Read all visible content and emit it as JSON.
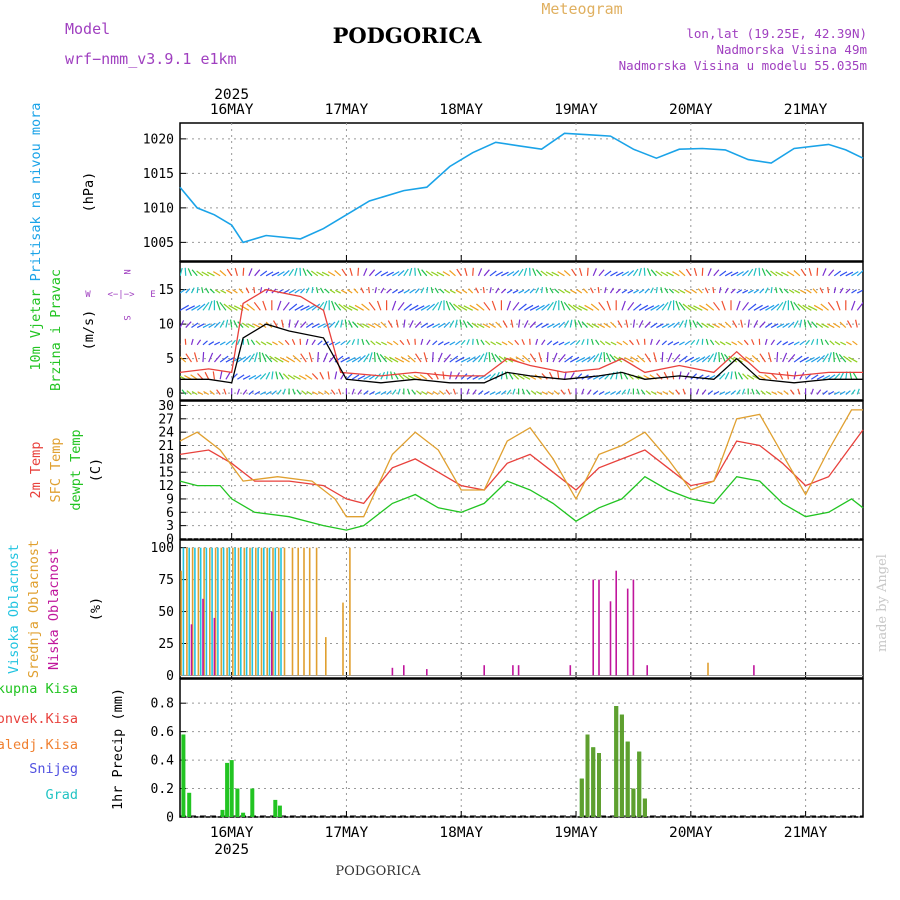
{
  "header": {
    "model_label": "Model",
    "model_name": "wrf−nmm_v3.9.1 e1km",
    "title": "PODGORICA",
    "product": "Meteogram",
    "coords": "lon,lat (19.25E, 42.39N)",
    "elevation": "Nadmorska Visina 49m",
    "model_elevation": "Nadmorska Visina u modelu 55.035m",
    "footer": "PODGORICA",
    "credit": "made by Angel"
  },
  "colors": {
    "pressure": "#1aa3e8",
    "temp2m": "#e8413c",
    "sfc": "#e0a030",
    "dew": "#22c422",
    "visoka": "#22c4e0",
    "srednja": "#e0a030",
    "niska": "#c0169c",
    "ukupna": "#22c422",
    "konvek": "#e8413c",
    "zaledj": "#f08030",
    "snijeg": "#5050e0",
    "grad": "#22c4c4",
    "precip_bar": "#5f9f2f",
    "wind_speed": "#000000",
    "gust": "#e8413c",
    "direction_legend": "#a040c0"
  },
  "time_axis": {
    "start_day": 15.55,
    "end_day": 21.5,
    "year": "2025",
    "day_ticks": [
      {
        "day": 16,
        "label": "16MAY"
      },
      {
        "day": 17,
        "label": "17MAY"
      },
      {
        "day": 18,
        "label": "18MAY"
      },
      {
        "day": 19,
        "label": "19MAY"
      },
      {
        "day": 20,
        "label": "20MAY"
      },
      {
        "day": 21,
        "label": "21MAY"
      }
    ]
  },
  "chart_data": [
    {
      "type": "line",
      "name": "pressure",
      "ylabel": "Pritisak na nivou mora",
      "unit": "(hPa)",
      "ylim": [
        1002.3,
        1022.3
      ],
      "yticks": [
        1005,
        1010,
        1015,
        1020
      ],
      "points": [
        [
          15.55,
          1013
        ],
        [
          15.7,
          1010
        ],
        [
          15.85,
          1009
        ],
        [
          16.0,
          1007.5
        ],
        [
          16.1,
          1005
        ],
        [
          16.3,
          1006
        ],
        [
          16.6,
          1005.5
        ],
        [
          16.8,
          1007
        ],
        [
          17.0,
          1009
        ],
        [
          17.2,
          1011
        ],
        [
          17.5,
          1012.5
        ],
        [
          17.7,
          1013
        ],
        [
          17.9,
          1016
        ],
        [
          18.1,
          1018
        ],
        [
          18.3,
          1019.5
        ],
        [
          18.5,
          1019
        ],
        [
          18.7,
          1018.5
        ],
        [
          18.9,
          1020.8
        ],
        [
          19.1,
          1020.6
        ],
        [
          19.3,
          1020.4
        ],
        [
          19.5,
          1018.5
        ],
        [
          19.7,
          1017.2
        ],
        [
          19.9,
          1018.5
        ],
        [
          20.1,
          1018.6
        ],
        [
          20.3,
          1018.4
        ],
        [
          20.5,
          1017
        ],
        [
          20.7,
          1016.5
        ],
        [
          20.9,
          1018.6
        ],
        [
          21.2,
          1019.2
        ],
        [
          21.35,
          1018.4
        ],
        [
          21.5,
          1017.2
        ]
      ]
    },
    {
      "type": "line",
      "name": "wind",
      "ylabel_1": "10m Vjetar",
      "ylabel_2": "Brzina i Pravac",
      "unit": "(m/s)",
      "direction_legend": {
        "n": "N",
        "w": "W",
        "e": "E",
        "s": "S",
        "arrows": "<−|−>"
      },
      "ylim": [
        -1,
        19
      ],
      "yticks": [
        0,
        5,
        10,
        15
      ],
      "speed": [
        [
          15.55,
          2
        ],
        [
          15.8,
          2
        ],
        [
          16.0,
          1.5
        ],
        [
          16.1,
          8
        ],
        [
          16.3,
          10
        ],
        [
          16.5,
          9
        ],
        [
          16.8,
          8
        ],
        [
          17.0,
          2
        ],
        [
          17.3,
          1.5
        ],
        [
          17.6,
          2
        ],
        [
          17.9,
          1.5
        ],
        [
          18.2,
          1.5
        ],
        [
          18.4,
          3
        ],
        [
          18.6,
          2.5
        ],
        [
          18.9,
          2
        ],
        [
          19.2,
          2.5
        ],
        [
          19.4,
          3
        ],
        [
          19.6,
          2
        ],
        [
          19.9,
          2.5
        ],
        [
          20.2,
          2
        ],
        [
          20.4,
          5
        ],
        [
          20.6,
          2
        ],
        [
          20.9,
          1.5
        ],
        [
          21.2,
          2
        ],
        [
          21.5,
          2
        ]
      ],
      "gust": [
        [
          15.55,
          3
        ],
        [
          15.8,
          3.5
        ],
        [
          16.0,
          3
        ],
        [
          16.1,
          13
        ],
        [
          16.3,
          15
        ],
        [
          16.6,
          14
        ],
        [
          16.8,
          12
        ],
        [
          16.95,
          3
        ],
        [
          17.3,
          2.5
        ],
        [
          17.6,
          3
        ],
        [
          17.9,
          2.5
        ],
        [
          18.2,
          2.5
        ],
        [
          18.4,
          5
        ],
        [
          18.6,
          4
        ],
        [
          18.9,
          3
        ],
        [
          19.2,
          3.5
        ],
        [
          19.4,
          5
        ],
        [
          19.6,
          3
        ],
        [
          19.9,
          4
        ],
        [
          20.2,
          3
        ],
        [
          20.4,
          6
        ],
        [
          20.6,
          3
        ],
        [
          20.9,
          2.5
        ],
        [
          21.2,
          3
        ],
        [
          21.5,
          3
        ]
      ]
    },
    {
      "type": "line",
      "name": "temperature",
      "ylabel_1": "2m Temp",
      "ylabel_2": "SFC Temp",
      "ylabel_3": "dewpt Temp",
      "unit": "(C)",
      "ylim": [
        0,
        31
      ],
      "yticks": [
        0,
        3,
        6,
        9,
        12,
        15,
        18,
        21,
        24,
        27,
        30
      ],
      "series": [
        {
          "name": "2m Temp",
          "key": "temp2m",
          "points": [
            [
              15.55,
              19
            ],
            [
              15.8,
              20
            ],
            [
              16.0,
              17
            ],
            [
              16.2,
              13
            ],
            [
              16.5,
              13
            ],
            [
              16.8,
              12
            ],
            [
              17.0,
              9
            ],
            [
              17.15,
              8
            ],
            [
              17.4,
              16
            ],
            [
              17.6,
              18
            ],
            [
              17.8,
              15
            ],
            [
              18.0,
              12
            ],
            [
              18.2,
              11
            ],
            [
              18.4,
              17
            ],
            [
              18.6,
              19
            ],
            [
              18.8,
              15
            ],
            [
              19.0,
              11
            ],
            [
              19.2,
              16
            ],
            [
              19.4,
              18
            ],
            [
              19.6,
              20
            ],
            [
              19.8,
              16
            ],
            [
              20.0,
              12
            ],
            [
              20.2,
              13
            ],
            [
              20.4,
              22
            ],
            [
              20.6,
              21
            ],
            [
              20.8,
              17
            ],
            [
              21.0,
              12
            ],
            [
              21.2,
              14
            ],
            [
              21.5,
              24.5
            ]
          ]
        },
        {
          "name": "SFC Temp",
          "key": "sfc",
          "points": [
            [
              15.55,
              22
            ],
            [
              15.7,
              24
            ],
            [
              15.9,
              20
            ],
            [
              16.1,
              13
            ],
            [
              16.4,
              14
            ],
            [
              16.7,
              13
            ],
            [
              16.9,
              9
            ],
            [
              17.0,
              5
            ],
            [
              17.15,
              5
            ],
            [
              17.4,
              19
            ],
            [
              17.6,
              24
            ],
            [
              17.8,
              20
            ],
            [
              18.0,
              11
            ],
            [
              18.2,
              11
            ],
            [
              18.4,
              22
            ],
            [
              18.6,
              25
            ],
            [
              18.8,
              18
            ],
            [
              19.0,
              9
            ],
            [
              19.2,
              19
            ],
            [
              19.4,
              21
            ],
            [
              19.6,
              24
            ],
            [
              19.8,
              18
            ],
            [
              20.0,
              11
            ],
            [
              20.2,
              13
            ],
            [
              20.4,
              27
            ],
            [
              20.6,
              28
            ],
            [
              20.8,
              19
            ],
            [
              21.0,
              10
            ],
            [
              21.2,
              20
            ],
            [
              21.4,
              29
            ],
            [
              21.5,
              29
            ]
          ]
        },
        {
          "name": "dewpt Temp",
          "key": "dew",
          "points": [
            [
              15.55,
              13
            ],
            [
              15.7,
              12
            ],
            [
              15.9,
              12
            ],
            [
              16.0,
              9
            ],
            [
              16.2,
              6
            ],
            [
              16.5,
              5
            ],
            [
              16.8,
              3
            ],
            [
              17.0,
              2
            ],
            [
              17.15,
              3
            ],
            [
              17.4,
              8
            ],
            [
              17.6,
              10
            ],
            [
              17.8,
              7
            ],
            [
              18.0,
              6
            ],
            [
              18.2,
              8
            ],
            [
              18.4,
              13
            ],
            [
              18.6,
              11
            ],
            [
              18.8,
              8
            ],
            [
              19.0,
              4
            ],
            [
              19.2,
              7
            ],
            [
              19.4,
              9
            ],
            [
              19.6,
              14
            ],
            [
              19.8,
              11
            ],
            [
              20.0,
              9
            ],
            [
              20.2,
              8
            ],
            [
              20.4,
              14
            ],
            [
              20.6,
              13
            ],
            [
              20.8,
              8
            ],
            [
              21.0,
              5
            ],
            [
              21.2,
              6
            ],
            [
              21.4,
              9
            ],
            [
              21.5,
              7
            ]
          ]
        }
      ]
    },
    {
      "type": "bar",
      "name": "cloud",
      "ylabel_1": "Visoka Oblacnost",
      "ylabel_2": "Srednja Oblacnost",
      "ylabel_3": "Niska Oblacnost",
      "unit": "(%)",
      "ylim": [
        -2,
        106
      ],
      "yticks": [
        0,
        25,
        50,
        75,
        100
      ],
      "high": [
        [
          15.58,
          100
        ],
        [
          15.63,
          100
        ],
        [
          15.68,
          100
        ],
        [
          15.73,
          100
        ],
        [
          15.78,
          100
        ],
        [
          15.83,
          100
        ],
        [
          15.88,
          100
        ],
        [
          15.93,
          100
        ],
        [
          15.98,
          100
        ],
        [
          16.03,
          100
        ],
        [
          16.08,
          100
        ],
        [
          16.13,
          100
        ],
        [
          16.18,
          100
        ],
        [
          16.23,
          100
        ],
        [
          16.28,
          100
        ],
        [
          16.33,
          100
        ],
        [
          16.38,
          100
        ],
        [
          16.43,
          100
        ]
      ],
      "mid": [
        [
          15.56,
          82
        ],
        [
          15.61,
          100
        ],
        [
          15.66,
          100
        ],
        [
          15.71,
          100
        ],
        [
          15.76,
          100
        ],
        [
          15.81,
          100
        ],
        [
          15.86,
          100
        ],
        [
          15.91,
          100
        ],
        [
          15.96,
          100
        ],
        [
          16.01,
          100
        ],
        [
          16.06,
          100
        ],
        [
          16.11,
          100
        ],
        [
          16.16,
          100
        ],
        [
          16.21,
          100
        ],
        [
          16.26,
          100
        ],
        [
          16.31,
          100
        ],
        [
          16.36,
          100
        ],
        [
          16.41,
          100
        ],
        [
          16.46,
          100
        ],
        [
          16.53,
          100
        ],
        [
          16.58,
          100
        ],
        [
          16.63,
          100
        ],
        [
          16.68,
          100
        ],
        [
          16.74,
          100
        ],
        [
          16.82,
          30
        ],
        [
          16.97,
          57
        ],
        [
          17.03,
          100
        ],
        [
          20.15,
          10
        ]
      ],
      "low": [
        [
          15.65,
          40
        ],
        [
          15.75,
          60
        ],
        [
          15.85,
          45
        ],
        [
          16.35,
          50
        ],
        [
          17.4,
          6
        ],
        [
          17.5,
          8
        ],
        [
          17.7,
          5
        ],
        [
          18.2,
          8
        ],
        [
          18.45,
          8
        ],
        [
          18.5,
          8
        ],
        [
          18.95,
          8
        ],
        [
          19.15,
          75
        ],
        [
          19.2,
          75
        ],
        [
          19.3,
          58
        ],
        [
          19.35,
          82
        ],
        [
          19.45,
          68
        ],
        [
          19.5,
          75
        ],
        [
          19.62,
          8
        ],
        [
          20.55,
          8
        ]
      ]
    },
    {
      "type": "bar",
      "name": "precip",
      "legend_1": "Ukupna Kisa",
      "legend_2": "Konvek.Kisa",
      "legend_3": "Zaledj.Kisa",
      "legend_4": "Snijeg",
      "legend_5": "Grad",
      "ylabel": "1hr Precip (mm)",
      "ylim": [
        0,
        0.97
      ],
      "yticks": [
        0,
        0.2,
        0.4,
        0.6,
        0.8
      ],
      "total": [
        [
          15.58,
          0.58
        ],
        [
          15.63,
          0.17
        ],
        [
          15.92,
          0.05
        ],
        [
          15.96,
          0.38
        ],
        [
          16.0,
          0.4
        ],
        [
          16.05,
          0.2
        ],
        [
          16.1,
          0.03
        ],
        [
          16.18,
          0.2
        ],
        [
          16.38,
          0.12
        ],
        [
          16.42,
          0.08
        ],
        [
          19.05,
          0.27
        ],
        [
          19.1,
          0.58
        ],
        [
          19.15,
          0.49
        ],
        [
          19.2,
          0.45
        ],
        [
          19.35,
          0.78
        ],
        [
          19.4,
          0.72
        ],
        [
          19.45,
          0.53
        ],
        [
          19.5,
          0.2
        ],
        [
          19.55,
          0.46
        ],
        [
          19.6,
          0.13
        ]
      ],
      "convective": [
        [
          19.05,
          0.27
        ],
        [
          19.1,
          0.58
        ],
        [
          19.15,
          0.49
        ],
        [
          19.2,
          0.45
        ],
        [
          19.35,
          0.78
        ],
        [
          19.4,
          0.72
        ],
        [
          19.45,
          0.53
        ],
        [
          19.5,
          0.2
        ],
        [
          19.55,
          0.46
        ],
        [
          19.6,
          0.13
        ]
      ]
    }
  ]
}
